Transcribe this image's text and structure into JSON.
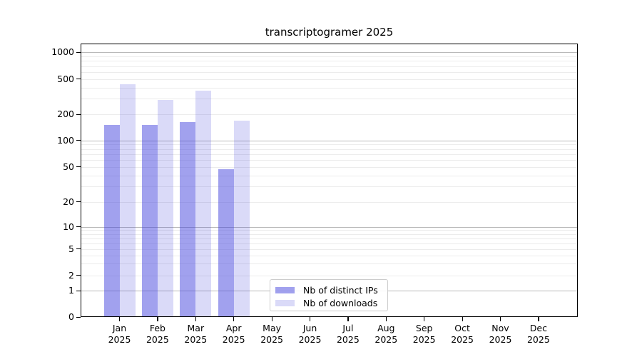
{
  "chart_data": {
    "type": "bar",
    "title": "transcriptogramer 2025",
    "categories": [
      "Jan",
      "Feb",
      "Mar",
      "Apr",
      "May",
      "Jun",
      "Jul",
      "Aug",
      "Sep",
      "Oct",
      "Nov",
      "Dec"
    ],
    "category_year_label": "2025",
    "series": [
      {
        "name": "Nb of distinct IPs",
        "color": "rgba(68,68,221,0.5)",
        "values": [
          152,
          152,
          163,
          47,
          0,
          0,
          0,
          0,
          0,
          0,
          0,
          0
        ]
      },
      {
        "name": "Nb of downloads",
        "color": "rgba(68,68,221,0.2)",
        "values": [
          439,
          290,
          369,
          170,
          0,
          0,
          0,
          0,
          0,
          0,
          0,
          0
        ]
      }
    ],
    "yaxis": {
      "scale": "log-with-zero (symlog)",
      "tick_values": [
        0,
        1,
        2,
        5,
        10,
        20,
        50,
        100,
        200,
        500,
        1000
      ],
      "tick_labels": [
        "0",
        "1",
        "2",
        "5",
        "10",
        "20",
        "50",
        "100",
        "200",
        "500",
        "1000"
      ],
      "range": [
        0,
        1250
      ]
    },
    "xlabel": "",
    "ylabel": "",
    "grid": {
      "horizontal": true,
      "major_on_powers_of_ten": true,
      "major_color": "#b9b9b9",
      "minor_color": "#ececec"
    },
    "legend": {
      "position": "inside-bottom-center-left",
      "entries": [
        {
          "label": "Nb of distinct IPs",
          "color": "rgba(68,68,221,0.5)"
        },
        {
          "label": "Nb of downloads",
          "color": "rgba(68,68,221,0.2)"
        }
      ]
    },
    "colors": {
      "background": "#ffffff",
      "spine": "#000000",
      "text": "#000000",
      "bar_base": "#4444dd"
    }
  }
}
